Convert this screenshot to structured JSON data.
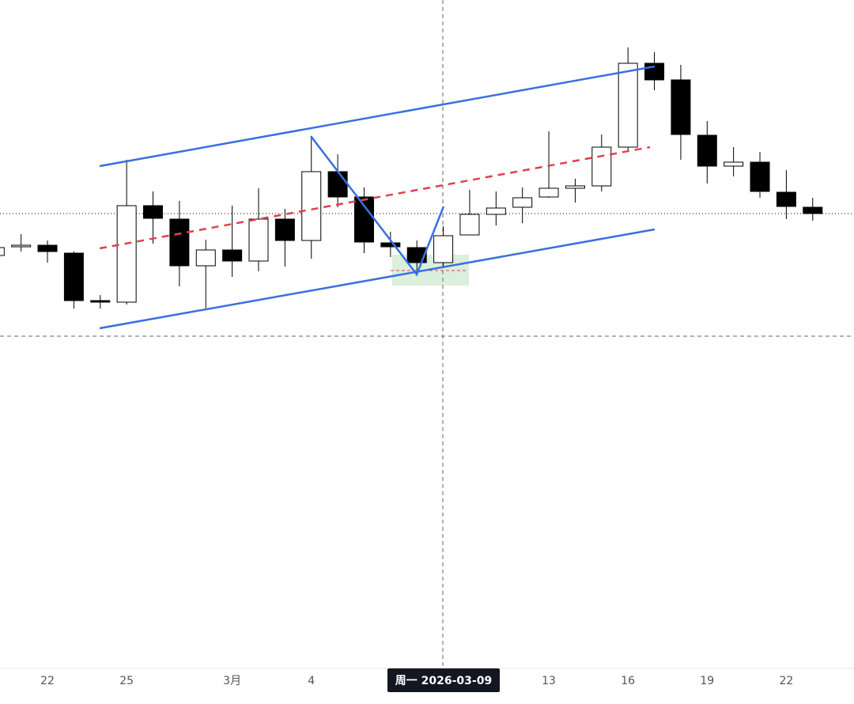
{
  "chart_data": {
    "type": "candlestick",
    "categories": [
      null,
      null,
      "22",
      null,
      null,
      "25",
      null,
      null,
      null,
      "3月",
      null,
      null,
      "4",
      null,
      null,
      null,
      null,
      null,
      null,
      null,
      null,
      "13",
      null,
      null,
      "16",
      null,
      null,
      "19",
      null,
      null,
      "22",
      null
    ],
    "crosshair_label": "周一 2026-03-09",
    "series": [
      {
        "up_color": "#ffffff",
        "down_color": "#000000",
        "open": [
          517,
          528,
          530,
          520,
          460,
          458,
          580,
          563,
          504,
          524,
          510,
          563,
          536,
          623,
          591,
          533,
          527,
          508,
          543,
          569,
          578,
          591,
          602,
          605,
          654,
          760,
          739,
          669,
          630,
          635,
          597,
          578
        ],
        "high": [
          530,
          544,
          536,
          522,
          467,
          638,
          598,
          586,
          537,
          580,
          602,
          576,
          668,
          645,
          603,
          547,
          536,
          554,
          600,
          598,
          603,
          674,
          614,
          670,
          780,
          774,
          758,
          687,
          654,
          648,
          625,
          590
        ],
        "low": [
          514,
          522,
          508,
          450,
          450,
          455,
          532,
          478,
          450,
          490,
          497,
          503,
          513,
          578,
          520,
          515,
          495,
          502,
          543,
          555,
          558,
          590,
          584,
          598,
          650,
          726,
          638,
          608,
          617,
          590,
          563,
          561
        ],
        "close": [
          527,
          530,
          522,
          460,
          458,
          580,
          564,
          504,
          524,
          510,
          563,
          536,
          623,
          591,
          534,
          528,
          508,
          542,
          569,
          577,
          590,
          602,
          605,
          654,
          760,
          739,
          670,
          630,
          635,
          598,
          579,
          570
        ]
      }
    ],
    "ylim": [
      0,
      840
    ]
  }
}
